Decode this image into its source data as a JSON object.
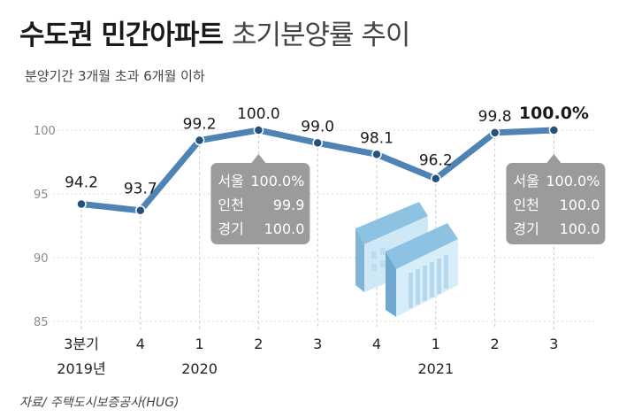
{
  "title_bold": "수도권 민간아파트",
  "title_light": "초기분양률 추이",
  "subtitle": "분양기간 3개월 초과 6개월 이하",
  "source": "자료/ 주택도시보증공사(HUG)",
  "colors": {
    "line": "#4f82b5",
    "marker": "#24527e",
    "callout_bg": "#9b9b9b",
    "grid": "#dcdcdc",
    "building": "#a9d4ec"
  },
  "chart_data": {
    "type": "line",
    "categories": [
      "3분기",
      "4",
      "1",
      "2",
      "3",
      "4",
      "1",
      "2",
      "3"
    ],
    "year_labels": [
      {
        "label": "2019년",
        "index": 0
      },
      {
        "label": "2020",
        "index": 2
      },
      {
        "label": "2021",
        "index": 6
      }
    ],
    "values": [
      94.2,
      93.7,
      99.2,
      100.0,
      99.0,
      98.1,
      96.2,
      99.8,
      100.0
    ],
    "value_labels": [
      "94.2",
      "93.7",
      "99.2",
      "100.0",
      "99.0",
      "98.1",
      "96.2",
      "99.8",
      "100.0%"
    ],
    "yticks": [
      85,
      90,
      95,
      100
    ],
    "ylim": [
      85,
      101.5
    ],
    "grid": "horizontal-dotted",
    "callouts": [
      {
        "index": 3,
        "lines": [
          {
            "name": "서울",
            "value": "100.0%"
          },
          {
            "name": "인천",
            "value": "99.9"
          },
          {
            "name": "경기",
            "value": "100.0"
          }
        ]
      },
      {
        "index": 8,
        "lines": [
          {
            "name": "서울",
            "value": "100.0%"
          },
          {
            "name": "인천",
            "value": "100.0"
          },
          {
            "name": "경기",
            "value": "100.0"
          }
        ]
      }
    ]
  }
}
